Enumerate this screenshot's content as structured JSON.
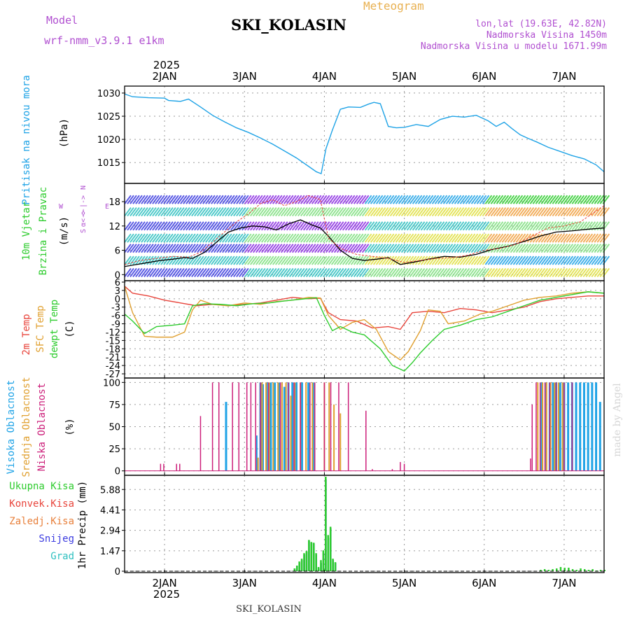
{
  "header": {
    "model_label": "Model",
    "model_name": "wrf-nmm_v3.9.1 e1km",
    "product": "Meteogram",
    "station": "SKI_KOLASIN",
    "coords": "lon,lat (19.63E, 42.82N)",
    "elevation": "Nadmorska Visina 1450m",
    "model_elevation": "Nadmorska Visina u modelu 1671.99m",
    "footer_station": "SKI_KOLASIN",
    "watermark": "made by Angel"
  },
  "colors": {
    "pressure": "#1fa3e6",
    "wind_label": "#2ecc2e",
    "temp2m": "#e8453c",
    "sfc": "#e0a030",
    "dewpt": "#2ecc2e",
    "high_cloud": "#1fa3e6",
    "mid_cloud": "#e0a030",
    "low_cloud": "#cc1f7a",
    "label_purple": "#b04fd0",
    "axis": "#000000",
    "grid": "#9a9a9a"
  },
  "time_axis": {
    "top_labels": [
      "2JAN",
      "3JAN",
      "4JAN",
      "5JAN",
      "6JAN",
      "7JAN"
    ],
    "top_year": "2025",
    "bottom_labels": [
      "2JAN",
      "3JAN",
      "4JAN",
      "5JAN",
      "6JAN",
      "7JAN"
    ],
    "bottom_year": "2025",
    "range_days": [
      0.5,
      6.5
    ]
  },
  "chart_data": [
    {
      "type": "line",
      "panel": "pressure",
      "ylabel_main": "Pritisak na nivou mora",
      "ylabel_unit": "(hPa)",
      "ylim": [
        1010.5,
        1031.5
      ],
      "yticks": [
        1015,
        1020,
        1025,
        1030
      ],
      "grid": true,
      "series": [
        {
          "x": [
            0.5,
            0.6,
            0.8,
            1.0,
            1.05,
            1.2,
            1.3,
            1.45,
            1.6,
            1.75,
            1.9,
            2.05,
            2.2,
            2.35,
            2.5,
            2.65,
            2.8,
            2.9,
            2.96,
            3.02,
            3.1,
            3.2,
            3.3,
            3.45,
            3.55,
            3.62,
            3.7,
            3.8,
            3.9,
            4.0,
            4.15,
            4.3,
            4.45,
            4.6,
            4.75,
            4.9,
            5.05,
            5.15,
            5.25,
            5.35,
            5.45,
            5.55,
            5.65,
            5.8,
            5.95,
            6.1,
            6.25,
            6.4,
            6.5
          ],
          "values": [
            1029.8,
            1029.2,
            1029.0,
            1028.9,
            1028.4,
            1028.2,
            1028.7,
            1027.0,
            1025.2,
            1023.8,
            1022.5,
            1021.5,
            1020.3,
            1019.0,
            1017.5,
            1016.0,
            1014.2,
            1013.0,
            1012.6,
            1018.0,
            1022.0,
            1026.5,
            1027.0,
            1026.9,
            1027.6,
            1028.0,
            1027.7,
            1022.8,
            1022.5,
            1022.6,
            1023.2,
            1022.8,
            1024.3,
            1025.0,
            1024.8,
            1025.2,
            1024.0,
            1022.8,
            1023.7,
            1022.3,
            1021.0,
            1020.2,
            1019.5,
            1018.3,
            1017.4,
            1016.5,
            1015.8,
            1014.5,
            1013.0
          ]
        }
      ]
    },
    {
      "type": "line",
      "panel": "wind",
      "ylabel_main": "10m Vjetar",
      "ylabel_main2": "Brzina i Pravac",
      "ylabel_unit": "(m/s)",
      "ylim": [
        -1.5,
        22.5
      ],
      "yticks": [
        0,
        6,
        12,
        18
      ],
      "grid": true,
      "legend_compass": [
        "N",
        "<-|->",
        "W",
        "E",
        "α<->",
        "S"
      ],
      "series": [
        {
          "name": "",
          "x": [
            0.5,
            0.65,
            0.8,
            0.95,
            1.1,
            1.25,
            1.35,
            1.5,
            1.65,
            1.8,
            1.95,
            2.1,
            2.25,
            2.4,
            2.55,
            2.7,
            2.85,
            2.95,
            3.05,
            3.2,
            3.35,
            3.5,
            3.65,
            3.8,
            3.95,
            4.1,
            4.3,
            4.5,
            4.7,
            4.9,
            5.1,
            5.3,
            5.5,
            5.7,
            5.9,
            6.1,
            6.3,
            6.5
          ],
          "values": [
            2.0,
            2.5,
            3.0,
            3.5,
            3.8,
            4.2,
            4.0,
            5.5,
            8.0,
            10.5,
            11.5,
            12.0,
            11.8,
            11.0,
            12.5,
            13.5,
            12.2,
            11.5,
            9.5,
            6.0,
            4.0,
            3.5,
            3.8,
            4.2,
            2.5,
            3.0,
            3.8,
            4.5,
            4.3,
            5.0,
            6.2,
            7.0,
            8.2,
            9.5,
            10.5,
            10.8,
            11.2,
            11.5
          ]
        },
        {
          "name": "",
          "x": [
            0.5,
            0.7,
            0.9,
            1.1,
            1.3,
            1.45,
            1.6,
            1.75,
            1.9,
            2.05,
            2.2,
            2.35,
            2.5,
            2.65,
            2.8,
            2.95,
            3.05,
            3.2,
            3.4,
            3.6,
            3.8,
            4.0,
            4.2,
            4.4,
            4.6,
            4.8,
            5.0,
            5.2,
            5.4,
            5.6,
            5.8,
            6.0,
            6.2,
            6.5
          ],
          "values": [
            2.5,
            3.5,
            4.0,
            4.5,
            4.3,
            5.5,
            8.0,
            10.5,
            13.0,
            15.0,
            17.5,
            18.5,
            17.0,
            18.0,
            19.5,
            18.5,
            9.0,
            6.5,
            5.0,
            4.5,
            4.0,
            3.0,
            3.5,
            4.0,
            4.2,
            4.8,
            6.0,
            6.5,
            7.5,
            9.5,
            11.5,
            12.0,
            13.0,
            17.0
          ]
        }
      ]
    },
    {
      "type": "line",
      "panel": "temperature",
      "ylabel_main": "2m Temp",
      "ylabel_main2": "SFC Temp",
      "ylabel_main3": "dewpt Temp",
      "ylabel_unit": "(C)",
      "ylim": [
        -28.5,
        6.5
      ],
      "yticks": [
        -27,
        -24,
        -21,
        -18,
        -15,
        -12,
        -9,
        -6,
        -3,
        0,
        3,
        6
      ],
      "grid": true,
      "series": [
        {
          "name": "2m Temp",
          "x": [
            0.5,
            0.6,
            0.8,
            1.0,
            1.2,
            1.4,
            1.6,
            1.8,
            2.0,
            2.2,
            2.4,
            2.6,
            2.8,
            2.95,
            3.05,
            3.2,
            3.4,
            3.6,
            3.8,
            3.95,
            4.1,
            4.3,
            4.5,
            4.7,
            4.9,
            5.1,
            5.3,
            5.5,
            5.7,
            5.9,
            6.1,
            6.3,
            6.5
          ],
          "values": [
            4.5,
            2.0,
            1.0,
            -0.5,
            -1.5,
            -2.5,
            -2.0,
            -2.5,
            -2.0,
            -1.5,
            -0.5,
            0.5,
            0.0,
            0.2,
            -5.0,
            -7.5,
            -8.0,
            -10.5,
            -10.0,
            -11.0,
            -5.0,
            -4.5,
            -5.0,
            -3.5,
            -4.0,
            -5.0,
            -4.0,
            -3.0,
            -1.0,
            0.0,
            0.5,
            1.0,
            1.0
          ]
        },
        {
          "name": "SFC Temp",
          "x": [
            0.5,
            0.6,
            0.75,
            0.9,
            1.1,
            1.25,
            1.35,
            1.45,
            1.6,
            1.8,
            2.0,
            2.2,
            2.4,
            2.6,
            2.8,
            2.95,
            3.05,
            3.2,
            3.35,
            3.5,
            3.65,
            3.8,
            3.95,
            4.05,
            4.2,
            4.3,
            4.45,
            4.55,
            4.75,
            4.95,
            5.1,
            5.3,
            5.5,
            5.7,
            5.9,
            6.1,
            6.3,
            6.5
          ],
          "values": [
            4.5,
            -5.0,
            -13.5,
            -13.8,
            -13.8,
            -12.0,
            -4.0,
            -0.5,
            -2.0,
            -2.5,
            -1.5,
            -2.0,
            -1.0,
            -0.5,
            0.5,
            0.3,
            -6.0,
            -11.0,
            -8.5,
            -7.5,
            -11.0,
            -19.0,
            -22.0,
            -19.0,
            -11.5,
            -4.0,
            -4.5,
            -9.0,
            -8.0,
            -5.5,
            -4.5,
            -2.5,
            -0.5,
            0.5,
            1.0,
            2.0,
            2.5,
            2.0
          ]
        },
        {
          "name": "dewpt Temp",
          "x": [
            0.5,
            0.6,
            0.75,
            0.9,
            1.1,
            1.25,
            1.35,
            1.5,
            1.7,
            1.9,
            2.1,
            2.3,
            2.5,
            2.7,
            2.9,
            3.0,
            3.1,
            3.2,
            3.35,
            3.5,
            3.7,
            3.85,
            4.0,
            4.1,
            4.2,
            4.35,
            4.5,
            4.7,
            4.9,
            5.1,
            5.3,
            5.5,
            5.7,
            5.9,
            6.1,
            6.3,
            6.5
          ],
          "values": [
            -5.5,
            -8.0,
            -12.5,
            -10.0,
            -9.5,
            -9.0,
            -2.5,
            -1.8,
            -2.0,
            -2.5,
            -1.8,
            -1.5,
            -0.8,
            -0.2,
            0.4,
            -6.0,
            -11.5,
            -10.0,
            -12.0,
            -13.0,
            -18.0,
            -24.0,
            -26.0,
            -23.0,
            -19.5,
            -15.0,
            -11.0,
            -9.5,
            -7.5,
            -6.5,
            -4.5,
            -2.5,
            -0.5,
            0.5,
            1.5,
            2.5,
            2.0
          ]
        }
      ]
    },
    {
      "type": "bar",
      "panel": "cloud",
      "ylabel_main": "Visoka Oblacnost",
      "ylabel_main2": "Srednja Oblacnost",
      "ylabel_main3": "Niska Oblacnost",
      "ylabel_unit": "(%)",
      "ylim": [
        -5,
        105
      ],
      "yticks": [
        0,
        25,
        50,
        75,
        100
      ],
      "grid": true,
      "series": [
        {
          "name": "Visoka Oblacnost",
          "x": [
            1.77,
            2.15,
            2.2,
            2.23,
            2.28,
            2.33,
            2.38,
            2.44,
            2.5,
            2.55,
            2.6,
            2.65,
            2.72,
            2.8,
            2.86,
            5.72,
            5.77,
            5.82,
            5.86,
            5.9,
            5.95,
            6.0,
            6.05,
            6.1,
            6.15,
            6.2,
            6.25,
            6.3,
            6.35,
            6.4,
            6.45
          ],
          "values": [
            78,
            40,
            100,
            98,
            100,
            100,
            100,
            100,
            95,
            100,
            100,
            100,
            100,
            100,
            100,
            100,
            100,
            100,
            100,
            100,
            100,
            100,
            100,
            100,
            100,
            100,
            100,
            100,
            100,
            100,
            78
          ]
        },
        {
          "name": "Srednja Oblacnost",
          "x": [
            2.17,
            2.22,
            2.27,
            2.31,
            2.36,
            2.42,
            2.47,
            2.52,
            2.58,
            2.63,
            2.7,
            2.77,
            2.85,
            3.0,
            3.06,
            3.12,
            3.2,
            5.67,
            5.73,
            5.78,
            5.83,
            5.88,
            5.93,
            5.98
          ],
          "values": [
            15,
            100,
            100,
            100,
            100,
            100,
            100,
            100,
            85,
            100,
            100,
            100,
            100,
            100,
            100,
            75,
            65,
            100,
            100,
            100,
            100,
            100,
            100,
            100
          ]
        },
        {
          "name": "Niska Oblacnost",
          "x": [
            0.95,
            0.99,
            1.15,
            1.19,
            1.45,
            1.6,
            1.68,
            1.85,
            1.93,
            2.03,
            2.08,
            2.14,
            2.2,
            2.3,
            2.45,
            2.55,
            2.62,
            2.7,
            2.82,
            2.88,
            3.0,
            3.08,
            3.18,
            3.3,
            3.52,
            3.6,
            3.85,
            3.95,
            4.0,
            5.58,
            5.6,
            5.65,
            5.7,
            5.76,
            5.82,
            5.9,
            6.0,
            6.1
          ],
          "values": [
            8,
            8,
            8,
            8,
            62,
            100,
            100,
            100,
            100,
            100,
            100,
            100,
            100,
            100,
            100,
            100,
            100,
            100,
            100,
            100,
            100,
            100,
            100,
            100,
            68,
            2,
            2,
            10,
            8,
            14,
            75,
            100,
            100,
            100,
            100,
            100,
            100,
            100
          ]
        }
      ]
    },
    {
      "type": "bar",
      "panel": "precip",
      "ylabel_unit": "1hr Precip (mm)",
      "ylim": [
        -0.1,
        6.9
      ],
      "yticks": [
        0,
        1.47,
        2.94,
        4.41,
        5.88
      ],
      "ytick_labels": [
        "0",
        "1.47",
        "2.94",
        "4.41",
        "5.88"
      ],
      "grid": true,
      "legend": [
        "Ukupna Kisa",
        "Konvek.Kisa",
        "Zaledj.Kisa",
        "Snijeg",
        "Grad"
      ],
      "legend_colors": [
        "#2ecc2e",
        "#e8453c",
        "#e8803c",
        "#3c3ce0",
        "#2ec0c0"
      ],
      "series": [
        {
          "name": "Snijeg",
          "x": [
            2.63,
            2.66,
            2.69,
            2.72,
            2.75,
            2.78,
            2.81,
            2.84,
            2.87,
            2.9,
            2.93,
            2.96,
            2.99,
            3.02,
            3.05,
            3.08,
            3.11,
            3.14
          ],
          "values": [
            0.2,
            0.4,
            0.6,
            0.8,
            1.2,
            1.4,
            2.2,
            2.05,
            2.0,
            1.2,
            0.2,
            0.6,
            1.3,
            6.6,
            2.4,
            3.1,
            0.8,
            0.6
          ]
        },
        {
          "name": "Ukupna Kisa",
          "x": [
            2.62,
            2.65,
            2.68,
            2.71,
            2.74,
            2.77,
            2.8,
            2.83,
            2.86,
            2.89,
            2.92,
            2.95,
            2.98,
            3.01,
            3.04,
            3.07,
            3.1,
            3.13,
            5.7,
            5.75,
            5.8,
            5.85,
            5.9,
            5.95,
            6.0,
            6.05,
            6.1,
            6.15,
            6.2,
            6.25,
            6.3,
            6.35,
            6.4,
            6.45,
            6.5
          ],
          "values": [
            0.2,
            0.4,
            0.7,
            0.9,
            1.3,
            1.45,
            2.25,
            2.1,
            2.05,
            1.3,
            0.3,
            0.8,
            1.5,
            6.8,
            2.6,
            3.2,
            0.9,
            0.65,
            0.1,
            0.15,
            0.1,
            0.15,
            0.2,
            0.3,
            0.25,
            0.25,
            0.15,
            0.1,
            0.2,
            0.15,
            0.1,
            0.15,
            0.05,
            0.1,
            0.1
          ]
        }
      ]
    }
  ]
}
